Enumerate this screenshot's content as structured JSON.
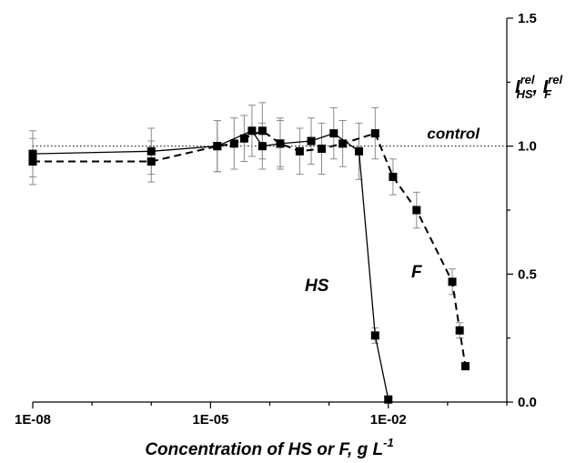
{
  "chart_data": {
    "type": "scatter",
    "xlabel": "Concentration of HS or F, g L",
    "xlabel_sup": "-1",
    "ylabel": {
      "main": "I",
      "p1_sup": "rel",
      "p1_sub": "HS",
      "sep": ", ",
      "p2_main": "I",
      "p2_sup": "rel",
      "p2_sub": "F"
    },
    "x_scale": "log",
    "xlim": [
      1e-08,
      1
    ],
    "ylim": [
      0,
      1.5
    ],
    "x_ticks": [
      {
        "value": 1e-08,
        "label": "1E-08"
      },
      {
        "value": 1e-05,
        "label": "1E-05"
      },
      {
        "value": 0.01,
        "label": "1E-02"
      }
    ],
    "y_ticks": [
      {
        "value": 0.0,
        "label": "0.0"
      },
      {
        "value": 0.5,
        "label": "0.5"
      },
      {
        "value": 1.0,
        "label": "1.0"
      },
      {
        "value": 1.5,
        "label": "1.5"
      }
    ],
    "y_axis_side": "right",
    "grid": false,
    "reference_line": {
      "y": 1.0,
      "label": "control",
      "style": "dotted"
    },
    "series": [
      {
        "name": "HS",
        "line_style": "solid",
        "marker": "square",
        "points": [
          {
            "x": 1e-08,
            "y": 0.97,
            "err": 0.09
          },
          {
            "x": 1e-06,
            "y": 0.98,
            "err": 0.09
          },
          {
            "x": 1.3e-05,
            "y": 1.0,
            "err": 0.1
          },
          {
            "x": 5e-05,
            "y": 1.06,
            "err": 0.1
          },
          {
            "x": 7.5e-05,
            "y": 1.0,
            "err": 0.09
          },
          {
            "x": 0.00015,
            "y": 1.01,
            "err": 0.1
          },
          {
            "x": 0.0005,
            "y": 1.02,
            "err": 0.09
          },
          {
            "x": 0.0012,
            "y": 1.05,
            "err": 0.1
          },
          {
            "x": 0.0032,
            "y": 0.98,
            "err": 0.11
          },
          {
            "x": 0.006,
            "y": 0.26,
            "err": 0.03
          },
          {
            "x": 0.01,
            "y": 0.01,
            "err": 0.0
          }
        ]
      },
      {
        "name": "F",
        "line_style": "dashed",
        "marker": "square",
        "points": [
          {
            "x": 1e-08,
            "y": 0.94,
            "err": 0.09
          },
          {
            "x": 1e-06,
            "y": 0.94,
            "err": 0.08
          },
          {
            "x": 1.3e-05,
            "y": 1.0,
            "err": 0.1
          },
          {
            "x": 2.5e-05,
            "y": 1.01,
            "err": 0.1
          },
          {
            "x": 3.7e-05,
            "y": 1.03,
            "err": 0.09
          },
          {
            "x": 7.5e-05,
            "y": 1.06,
            "err": 0.11
          },
          {
            "x": 0.00015,
            "y": 1.01,
            "err": 0.09
          },
          {
            "x": 0.00032,
            "y": 0.98,
            "err": 0.09
          },
          {
            "x": 0.00075,
            "y": 0.99,
            "err": 0.1
          },
          {
            "x": 0.0017,
            "y": 1.01,
            "err": 0.09
          },
          {
            "x": 0.006,
            "y": 1.05,
            "err": 0.1
          },
          {
            "x": 0.012,
            "y": 0.88,
            "err": 0.07
          },
          {
            "x": 0.03,
            "y": 0.75,
            "err": 0.07
          },
          {
            "x": 0.12,
            "y": 0.47,
            "err": 0.05
          },
          {
            "x": 0.16,
            "y": 0.28,
            "err": 0.03
          },
          {
            "x": 0.2,
            "y": 0.14,
            "err": 0.0
          }
        ]
      }
    ]
  }
}
